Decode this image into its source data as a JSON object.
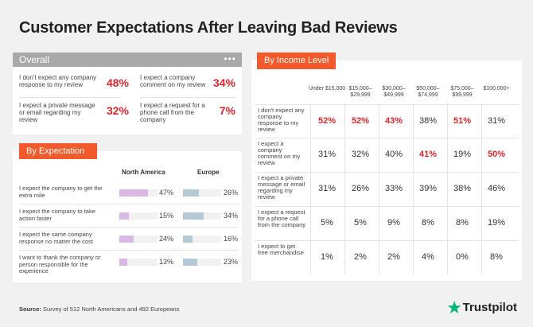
{
  "title": "Customer Expectations After Leaving Bad Reviews",
  "overall": {
    "header": "Overall",
    "menu": "•••",
    "items": [
      {
        "label": "I don't expect any company response to my review",
        "value": "48%"
      },
      {
        "label": "I expect a company comment on my review",
        "value": "34%"
      },
      {
        "label": "I expect a private message or email regarding my review",
        "value": "32%"
      },
      {
        "label": "I expect a request for a phone call from the company",
        "value": "7%"
      }
    ]
  },
  "by_expectation": {
    "header": "By Expectation",
    "col_na": "North America",
    "col_eu": "Europe",
    "rows": [
      {
        "label": "I expect the company to get the extra mile",
        "na": "47%",
        "eu": "26%"
      },
      {
        "label": "I expect the company to take action faster",
        "na": "15%",
        "eu": "34%"
      },
      {
        "label": "I expect the same company response no matter the cost",
        "na": "24%",
        "eu": "16%"
      },
      {
        "label": "I want to thank the company or person responsible for the experience",
        "na": "13%",
        "eu": "23%"
      }
    ]
  },
  "by_income": {
    "header": "By Income Level",
    "columns": [
      "Under $15,000",
      "$15,000–$29,999",
      "$30,000–$49,999",
      "$50,000–$74,999",
      "$75,000–$99,999",
      "$100,000+"
    ],
    "rows": [
      {
        "label": "I don't expect any company response to my review",
        "values": [
          "52%",
          "52%",
          "43%",
          "38%",
          "51%",
          "31%"
        ]
      },
      {
        "label": "I expect a company comment on my review",
        "values": [
          "31%",
          "32%",
          "40%",
          "41%",
          "19%",
          "50%"
        ]
      },
      {
        "label": "I expect a private message or email regarding my review",
        "values": [
          "31%",
          "26%",
          "33%",
          "39%",
          "38%",
          "46%"
        ]
      },
      {
        "label": "I expect a request for a phone call from the company",
        "values": [
          "5%",
          "5%",
          "9%",
          "8%",
          "8%",
          "19%"
        ]
      },
      {
        "label": "I expect to get free merchandise",
        "values": [
          "1%",
          "2%",
          "2%",
          "4%",
          "0%",
          "8%"
        ]
      }
    ],
    "highlight": [
      [
        0,
        0
      ],
      [
        0,
        1
      ],
      [
        0,
        2
      ],
      [
        0,
        4
      ],
      [
        1,
        3
      ],
      [
        1,
        5
      ]
    ]
  },
  "source_label": "Source:",
  "source_text": "Survey of 512 North Americans and 492 Europeans",
  "brand": "Trustpilot",
  "colors": {
    "accent": "#f25a2c",
    "highlight": "#e1242b",
    "bar_na": "#d9b8e6",
    "bar_eu": "#b3c9d6",
    "brand_star": "#00b67a"
  },
  "chart_data": [
    {
      "type": "bar",
      "title": "By Expectation",
      "categories": [
        "I expect the company to get the extra mile",
        "I expect the company to take action faster",
        "I expect the same company response no matter the cost",
        "I want to thank the company or person responsible for the experience"
      ],
      "series": [
        {
          "name": "North America",
          "values": [
            47,
            15,
            24,
            13
          ]
        },
        {
          "name": "Europe",
          "values": [
            26,
            34,
            16,
            23
          ]
        }
      ],
      "ylim": [
        0,
        100
      ]
    },
    {
      "type": "table",
      "title": "By Income Level",
      "columns": [
        "Under $15,000",
        "$15,000–$29,999",
        "$30,000–$49,999",
        "$50,000–$74,999",
        "$75,000–$99,999",
        "$100,000+"
      ],
      "rows": [
        {
          "label": "I don't expect any company response to my review",
          "values": [
            52,
            52,
            43,
            38,
            51,
            31
          ]
        },
        {
          "label": "I expect a company comment on my review",
          "values": [
            31,
            32,
            40,
            41,
            19,
            50
          ]
        },
        {
          "label": "I expect a private message or email regarding my review",
          "values": [
            31,
            26,
            33,
            39,
            38,
            46
          ]
        },
        {
          "label": "I expect a request for a phone call from the company",
          "values": [
            5,
            5,
            9,
            8,
            8,
            19
          ]
        },
        {
          "label": "I expect to get free merchandise",
          "values": [
            1,
            2,
            2,
            4,
            0,
            8
          ]
        }
      ]
    }
  ]
}
